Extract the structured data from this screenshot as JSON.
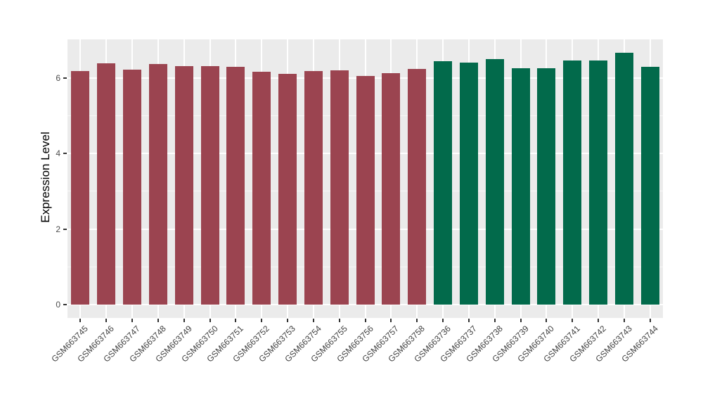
{
  "chart_data": {
    "type": "bar",
    "title": "",
    "xlabel": "",
    "ylabel": "Expression Level",
    "categories": [
      "GSM663745",
      "GSM663746",
      "GSM663747",
      "GSM663748",
      "GSM663749",
      "GSM663750",
      "GSM663751",
      "GSM663752",
      "GSM663753",
      "GSM663754",
      "GSM663755",
      "GSM663756",
      "GSM663757",
      "GSM663758",
      "GSM663736",
      "GSM663737",
      "GSM663738",
      "GSM663739",
      "GSM663740",
      "GSM663741",
      "GSM663742",
      "GSM663743",
      "GSM663744"
    ],
    "values": [
      6.17,
      6.38,
      6.21,
      6.37,
      6.3,
      6.31,
      6.28,
      6.16,
      6.1,
      6.18,
      6.2,
      6.05,
      6.13,
      6.24,
      6.43,
      6.4,
      6.49,
      6.26,
      6.25,
      6.45,
      6.45,
      6.66,
      6.29
    ],
    "groups": [
      "g1",
      "g1",
      "g1",
      "g1",
      "g1",
      "g1",
      "g1",
      "g1",
      "g1",
      "g1",
      "g1",
      "g1",
      "g1",
      "g1",
      "g2",
      "g2",
      "g2",
      "g2",
      "g2",
      "g2",
      "g2",
      "g2",
      "g2"
    ],
    "group_colors": {
      "g1": "#9B4450",
      "g2": "#026A4B"
    },
    "ylim": [
      0,
      7
    ],
    "yticks_major": [
      0,
      2,
      4,
      6
    ],
    "yticks_minor": [
      1,
      3,
      5
    ],
    "ytick_labels": [
      "0",
      "2",
      "4",
      "6"
    ],
    "grid": "on",
    "legend": "none",
    "panel_background": "#EBEBEB",
    "grid_color": "#FFFFFF"
  }
}
